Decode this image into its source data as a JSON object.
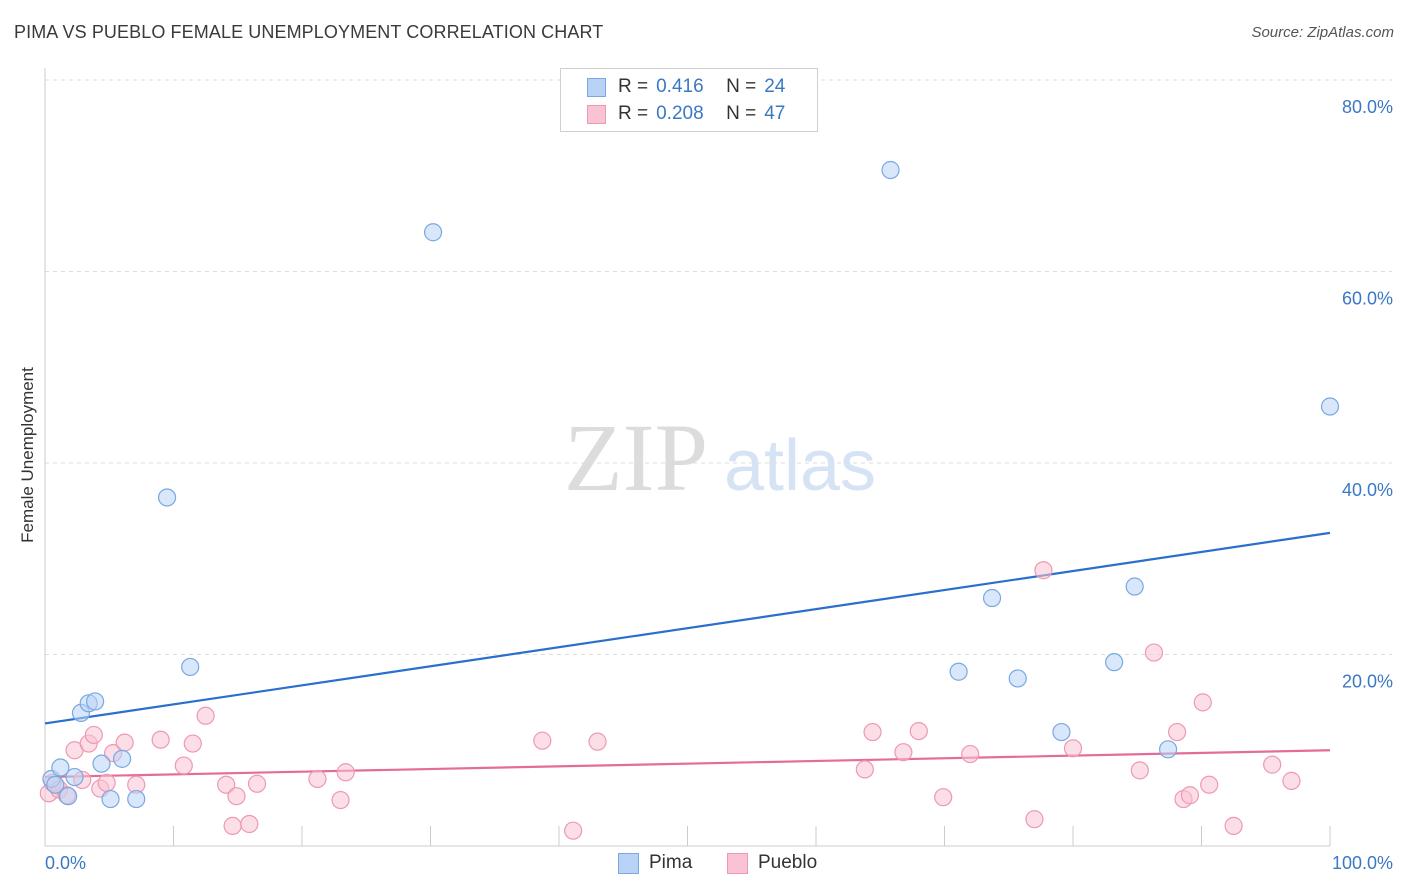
{
  "title": "PIMA VS PUEBLO FEMALE UNEMPLOYMENT CORRELATION CHART",
  "source": "Source: ZipAtlas.com",
  "watermark": {
    "zip": "ZIP",
    "atlas": "atlas"
  },
  "colors": {
    "pima_fill": "#b8d3f5",
    "pima_stroke": "#7aa8e0",
    "pima_line": "#2a6fce",
    "pueblo_fill": "#f9c3d3",
    "pueblo_stroke": "#ee98b4",
    "pueblo_line": "#e46c98",
    "tick_label": "#3b78c4",
    "grid": "#dddddd"
  },
  "legend": [
    {
      "r_label": "R =",
      "r_value": "0.416",
      "n_label": "N =",
      "n_value": "24"
    },
    {
      "r_label": "R =",
      "r_value": "0.208",
      "n_label": "N =",
      "n_value": "47"
    }
  ],
  "bottom_legend": [
    "Pima",
    "Pueblo"
  ],
  "chart_data": {
    "type": "scatter",
    "title": "PIMA VS PUEBLO FEMALE UNEMPLOYMENT CORRELATION CHART",
    "xlabel": "",
    "ylabel": "Female Unemployment",
    "xlim": [
      0,
      100
    ],
    "ylim": [
      0,
      82
    ],
    "x_tick_labels": [
      "0.0%",
      "100.0%"
    ],
    "y_ticks": [
      20,
      40,
      60,
      80
    ],
    "y_tick_labels": [
      "20.0%",
      "40.0%",
      "60.0%",
      "80.0%"
    ],
    "grid": true,
    "series": [
      {
        "name": "Pima",
        "trend": {
          "x": [
            0,
            100
          ],
          "y": [
            12.8,
            32.7
          ]
        },
        "points": [
          [
            0.5,
            7.0
          ],
          [
            0.8,
            6.4
          ],
          [
            1.2,
            8.2
          ],
          [
            1.8,
            5.2
          ],
          [
            2.3,
            7.2
          ],
          [
            2.8,
            13.9
          ],
          [
            3.4,
            14.9
          ],
          [
            3.9,
            15.1
          ],
          [
            4.4,
            8.6
          ],
          [
            5.1,
            4.9
          ],
          [
            6.0,
            9.1
          ],
          [
            7.1,
            4.9
          ],
          [
            9.5,
            36.4
          ],
          [
            11.3,
            18.7
          ],
          [
            30.2,
            64.1
          ],
          [
            65.8,
            70.6
          ],
          [
            71.1,
            18.2
          ],
          [
            73.7,
            25.9
          ],
          [
            75.7,
            17.5
          ],
          [
            79.1,
            11.9
          ],
          [
            83.2,
            19.2
          ],
          [
            84.8,
            27.1
          ],
          [
            87.4,
            10.1
          ],
          [
            100.0,
            45.9
          ]
        ]
      },
      {
        "name": "Pueblo",
        "trend": {
          "x": [
            0,
            100
          ],
          "y": [
            7.2,
            10.0
          ]
        },
        "points": [
          [
            0.3,
            5.5
          ],
          [
            0.6,
            6.6
          ],
          [
            1.1,
            5.9
          ],
          [
            1.7,
            5.3
          ],
          [
            2.3,
            10.0
          ],
          [
            2.9,
            6.9
          ],
          [
            3.4,
            10.7
          ],
          [
            3.8,
            11.6
          ],
          [
            4.3,
            6.0
          ],
          [
            4.8,
            6.6
          ],
          [
            5.3,
            9.7
          ],
          [
            6.2,
            10.8
          ],
          [
            7.1,
            6.4
          ],
          [
            9.0,
            11.1
          ],
          [
            10.8,
            8.4
          ],
          [
            11.5,
            10.7
          ],
          [
            12.5,
            13.6
          ],
          [
            14.1,
            6.4
          ],
          [
            14.6,
            2.1
          ],
          [
            14.9,
            5.2
          ],
          [
            15.9,
            2.3
          ],
          [
            16.5,
            6.5
          ],
          [
            21.2,
            7.0
          ],
          [
            23.0,
            4.8
          ],
          [
            23.4,
            7.7
          ],
          [
            38.7,
            11.0
          ],
          [
            41.1,
            1.6
          ],
          [
            43.0,
            10.9
          ],
          [
            63.8,
            8.0
          ],
          [
            64.4,
            11.9
          ],
          [
            66.8,
            9.8
          ],
          [
            68.0,
            12.0
          ],
          [
            69.9,
            5.1
          ],
          [
            72.0,
            9.6
          ],
          [
            77.0,
            2.8
          ],
          [
            77.7,
            28.8
          ],
          [
            80.0,
            10.2
          ],
          [
            85.2,
            7.9
          ],
          [
            86.3,
            20.2
          ],
          [
            88.1,
            11.9
          ],
          [
            88.6,
            4.9
          ],
          [
            89.1,
            5.3
          ],
          [
            90.1,
            15.0
          ],
          [
            90.6,
            6.4
          ],
          [
            92.5,
            2.1
          ],
          [
            95.5,
            8.5
          ],
          [
            97.0,
            6.8
          ]
        ]
      }
    ]
  }
}
